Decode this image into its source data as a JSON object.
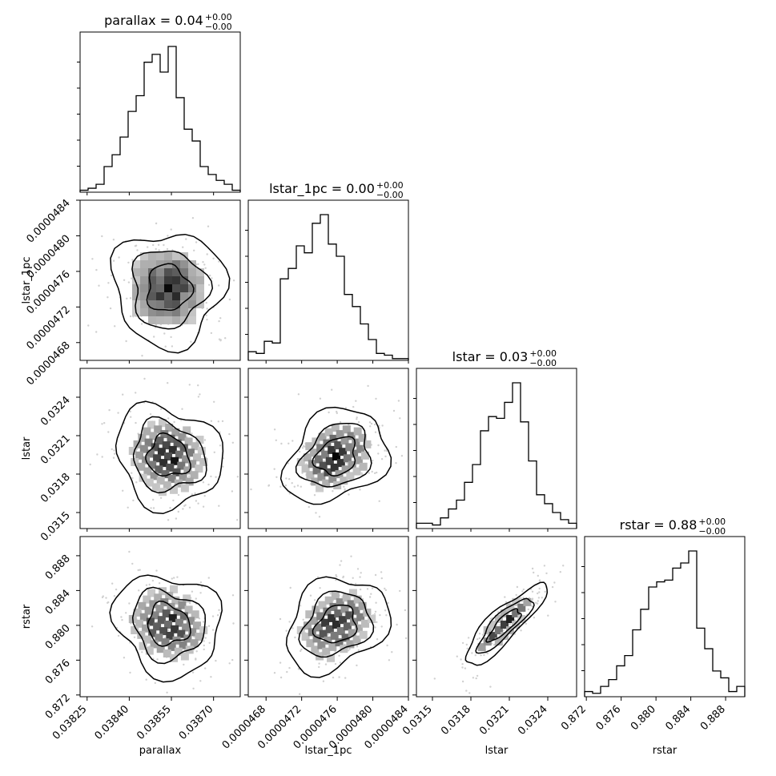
{
  "chart_data": {
    "type": "corner",
    "parameters": [
      "parallax",
      "lstar_1pc",
      "lstar",
      "rstar"
    ],
    "titles": [
      {
        "param": "parallax",
        "text": "parallax = 0.04",
        "upper": "+0.00",
        "lower": "−0.00"
      },
      {
        "param": "lstar_1pc",
        "text": "lstar_1pc = 0.00",
        "upper": "+0.00",
        "lower": "−0.00"
      },
      {
        "param": "lstar",
        "text": "lstar = 0.03",
        "upper": "+0.00",
        "lower": "−0.00"
      },
      {
        "param": "rstar",
        "text": "rstar = 0.88",
        "upper": "+0.00",
        "lower": "−0.00"
      }
    ],
    "axes": {
      "parallax": {
        "range": [
          0.038225,
          0.038795
        ],
        "ticks": [
          "0.03825",
          "0.03840",
          "0.03855",
          "0.03870"
        ],
        "tick_values": [
          0.03825,
          0.0384,
          0.03855,
          0.0387
        ]
      },
      "lstar_1pc": {
        "range": [
          4.66e-05,
          4.84e-05
        ],
        "ticks": [
          "0.0000468",
          "0.0000472",
          "0.0000476",
          "0.0000480",
          "0.0000484"
        ],
        "tick_values": [
          4.68e-05,
          4.72e-05,
          4.76e-05,
          4.8e-05,
          4.84e-05
        ]
      },
      "lstar": {
        "range": [
          0.031375,
          0.032625
        ],
        "ticks": [
          "0.0315",
          "0.0318",
          "0.0321",
          "0.0324"
        ],
        "tick_values": [
          0.0315,
          0.0318,
          0.0321,
          0.0324
        ]
      },
      "rstar": {
        "range": [
          0.8718,
          0.8902
        ],
        "ticks": [
          "0.872",
          "0.876",
          "0.880",
          "0.884",
          "0.888"
        ],
        "tick_values": [
          0.872,
          0.876,
          0.88,
          0.884,
          0.888
        ]
      }
    },
    "histograms": {
      "parallax": [
        1,
        2,
        4,
        13,
        19,
        28,
        41,
        49,
        66,
        70,
        61,
        74,
        48,
        32,
        26,
        13,
        9,
        6,
        4,
        1
      ],
      "lstar_1pc": [
        5,
        4,
        11,
        10,
        47,
        53,
        66,
        62,
        79,
        84,
        67,
        60,
        38,
        31,
        21,
        12,
        4,
        3,
        1,
        1
      ],
      "lstar": [
        3,
        3,
        2,
        6,
        11,
        16,
        26,
        36,
        55,
        63,
        62,
        71,
        82,
        60,
        38,
        19,
        14,
        9,
        5,
        3
      ],
      "rstar": [
        3,
        2,
        6,
        10,
        18,
        24,
        39,
        51,
        64,
        67,
        68,
        75,
        78,
        85,
        40,
        28,
        15,
        11,
        3,
        6
      ]
    },
    "grid": false,
    "legend": "none"
  },
  "labels": {
    "x": [
      "parallax",
      "lstar_1pc",
      "lstar",
      "rstar"
    ],
    "y": [
      "lstar_1pc",
      "lstar",
      "rstar"
    ]
  }
}
